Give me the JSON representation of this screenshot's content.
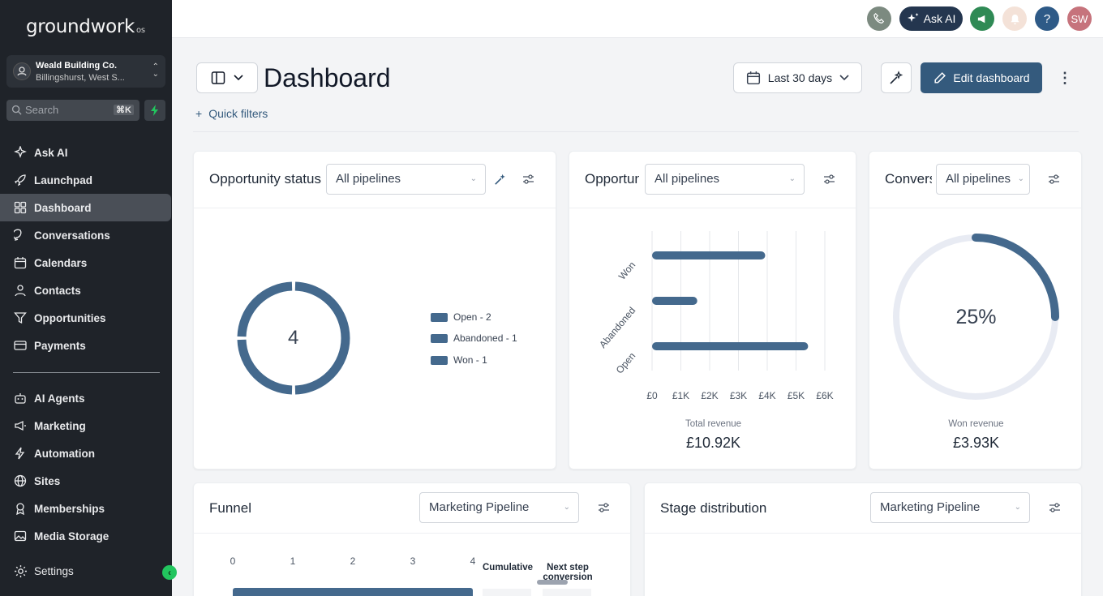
{
  "app": {
    "logo": "groundwork",
    "logo_suffix": "os"
  },
  "account": {
    "name": "Weald Building Co.",
    "location": "Billingshurst, West S..."
  },
  "search": {
    "placeholder": "Search",
    "shortcut": "⌘K"
  },
  "nav": {
    "primary": [
      {
        "label": "Ask AI",
        "icon": "sparkle-icon"
      },
      {
        "label": "Launchpad",
        "icon": "rocket-icon"
      },
      {
        "label": "Dashboard",
        "icon": "grid-icon",
        "active": true
      },
      {
        "label": "Conversations",
        "icon": "chat-bubble-icon"
      },
      {
        "label": "Calendars",
        "icon": "calendar-icon"
      },
      {
        "label": "Contacts",
        "icon": "user-icon"
      },
      {
        "label": "Opportunities",
        "icon": "funnel-icon"
      },
      {
        "label": "Payments",
        "icon": "credit-card-icon"
      }
    ],
    "secondary": [
      {
        "label": "AI Agents",
        "icon": "robot-icon"
      },
      {
        "label": "Marketing",
        "icon": "megaphone-icon"
      },
      {
        "label": "Automation",
        "icon": "lightning-icon"
      },
      {
        "label": "Sites",
        "icon": "globe-icon"
      },
      {
        "label": "Memberships",
        "icon": "badge-icon"
      },
      {
        "label": "Media Storage",
        "icon": "image-icon"
      }
    ],
    "settings": {
      "label": "Settings",
      "icon": "gear-icon"
    }
  },
  "topbar": {
    "ask_ai_label": "Ask AI",
    "avatar_initials": "SW"
  },
  "header": {
    "title": "Dashboard",
    "date_range": "Last 30 days",
    "edit_label": "Edit dashboard",
    "quick_filters": "Quick filters"
  },
  "cards": {
    "opportunity_status": {
      "title": "Opportunity status",
      "filter": "All pipelines",
      "total": "4",
      "legend": [
        "Open - 2",
        "Abandoned - 1",
        "Won - 1"
      ]
    },
    "opportunity_value": {
      "title": "Opportunity value",
      "filter": "All pipelines",
      "total_label": "Total revenue",
      "total_value": "£10.92K"
    },
    "conversion": {
      "title": "Conversion rate",
      "filter": "All pipelines",
      "percent_label": "25%",
      "won_label": "Won revenue",
      "won_value": "£3.93K"
    },
    "funnel": {
      "title": "Funnel",
      "filter": "Marketing Pipeline",
      "col_cumulative": "Cumulative",
      "col_next_step": "Next step conversion"
    },
    "stage_distribution": {
      "title": "Stage distribution",
      "filter": "Marketing Pipeline"
    }
  },
  "colors": {
    "accent": "#345a7d",
    "series": "#44698d",
    "sidebar": "#1f2329",
    "green": "#22c55e"
  },
  "chart_data": [
    {
      "type": "pie",
      "labels": [
        "Open",
        "Abandoned",
        "Won"
      ],
      "values": [
        2,
        1,
        1
      ]
    },
    {
      "type": "bar",
      "orientation": "horizontal",
      "categories": [
        "Won",
        "Abandoned",
        "Open"
      ],
      "values": [
        3930,
        1570,
        5420
      ],
      "xticks": [
        "£0",
        "£1K",
        "£2K",
        "£3K",
        "£4K",
        "£5K",
        "£6K"
      ],
      "xlim": [
        0,
        6000
      ]
    },
    {
      "type": "pie",
      "labels": [
        "Won"
      ],
      "values": [
        25
      ]
    },
    {
      "type": "bar",
      "orientation": "horizontal",
      "xticks": [
        "0",
        "1",
        "2",
        "3",
        "4"
      ],
      "xlim": [
        0,
        4
      ],
      "values": [
        4
      ]
    }
  ]
}
